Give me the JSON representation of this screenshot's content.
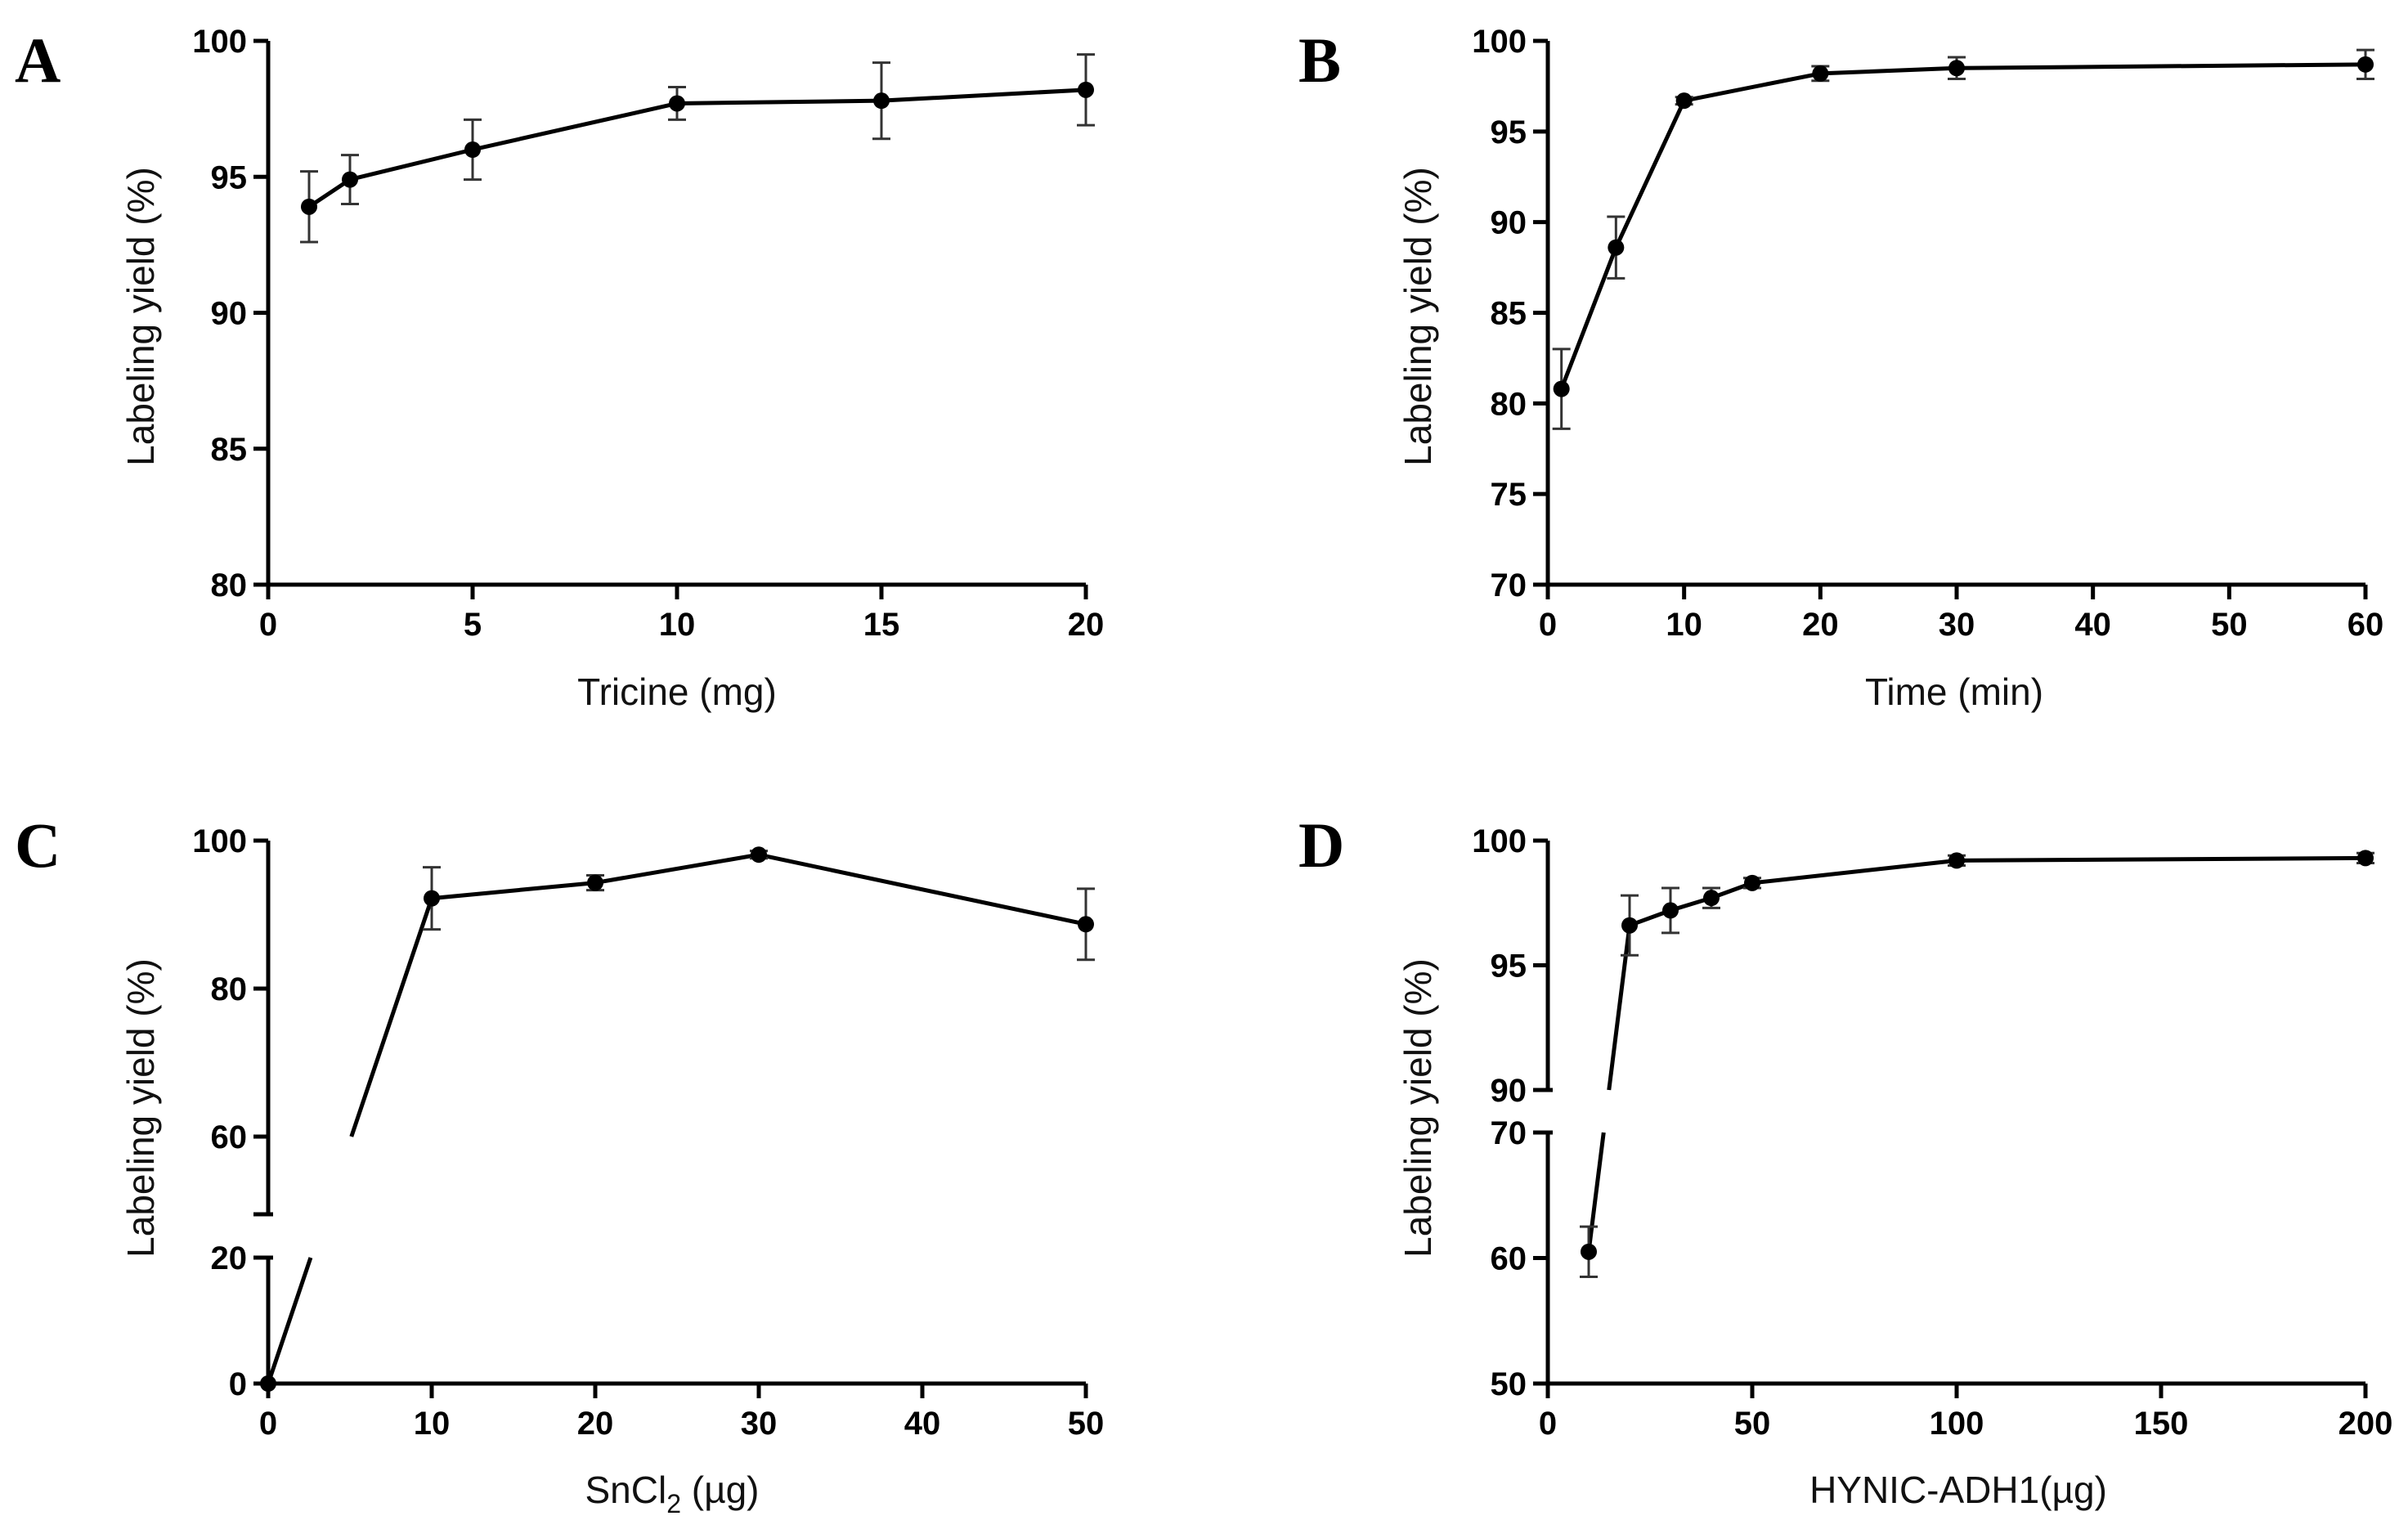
{
  "chart_data": [
    {
      "id": "A",
      "type": "line",
      "panel_label": "A",
      "xlabel": "Tricine (mg)",
      "ylabel": "Labeling yield (%)",
      "xlim": [
        0,
        20
      ],
      "ylim": [
        80,
        100
      ],
      "xticks": [
        0,
        5,
        10,
        15,
        20
      ],
      "yticks": [
        80,
        85,
        90,
        95,
        100
      ],
      "series": [
        {
          "name": "Labeling yield",
          "x": [
            1,
            2,
            5,
            10,
            15,
            20
          ],
          "values": [
            93.9,
            94.9,
            96.0,
            97.7,
            97.8,
            98.2
          ],
          "error": [
            1.3,
            0.9,
            1.1,
            0.6,
            1.4,
            1.3
          ]
        }
      ]
    },
    {
      "id": "B",
      "type": "line",
      "panel_label": "B",
      "xlabel": "Time (min)",
      "ylabel": "Labeling yield (%)",
      "xlim": [
        0,
        60
      ],
      "ylim": [
        70,
        100
      ],
      "xticks": [
        0,
        10,
        20,
        30,
        40,
        50,
        60
      ],
      "yticks": [
        70,
        75,
        80,
        85,
        90,
        95,
        100
      ],
      "series": [
        {
          "name": "Labeling yield",
          "x": [
            1,
            5,
            10,
            20,
            30,
            60
          ],
          "values": [
            80.8,
            88.6,
            96.7,
            98.2,
            98.5,
            98.7
          ],
          "error": [
            2.2,
            1.7,
            0.2,
            0.4,
            0.6,
            0.8
          ]
        }
      ]
    },
    {
      "id": "C",
      "type": "line",
      "panel_label": "C",
      "xlabel_main": "SnCl",
      "xlabel_sub": "2",
      "xlabel_tail": " (µg)",
      "ylabel": "Labeling yield (%)",
      "xlim": [
        0,
        50
      ],
      "ylim": [
        0,
        100
      ],
      "y_break": [
        20,
        60
      ],
      "xticks": [
        0,
        10,
        20,
        30,
        40,
        50
      ],
      "yticks": [
        0,
        20,
        60,
        80,
        100
      ],
      "series": [
        {
          "name": "Labeling yield",
          "x": [
            0,
            10,
            20,
            30,
            50
          ],
          "values": [
            0,
            92.2,
            94.3,
            98.1,
            88.7
          ],
          "error": [
            0,
            4.2,
            1.0,
            0.5,
            4.8
          ]
        }
      ]
    },
    {
      "id": "D",
      "type": "line",
      "panel_label": "D",
      "xlabel": "HYNIC-ADH1(µg)",
      "ylabel": "Labeling yield (%)",
      "xlim": [
        0,
        200
      ],
      "ylim": [
        50,
        100
      ],
      "y_break": [
        70,
        90
      ],
      "xticks": [
        0,
        50,
        100,
        150,
        200
      ],
      "yticks": [
        50,
        60,
        70,
        90,
        95,
        100
      ],
      "series": [
        {
          "name": "Labeling yield",
          "x": [
            10,
            20,
            30,
            40,
            50,
            100,
            200
          ],
          "values": [
            60.5,
            96.6,
            97.2,
            97.7,
            98.3,
            99.2,
            99.3
          ],
          "error": [
            2.0,
            1.2,
            0.9,
            0.4,
            0.2,
            0.2,
            0.2
          ]
        }
      ]
    }
  ]
}
